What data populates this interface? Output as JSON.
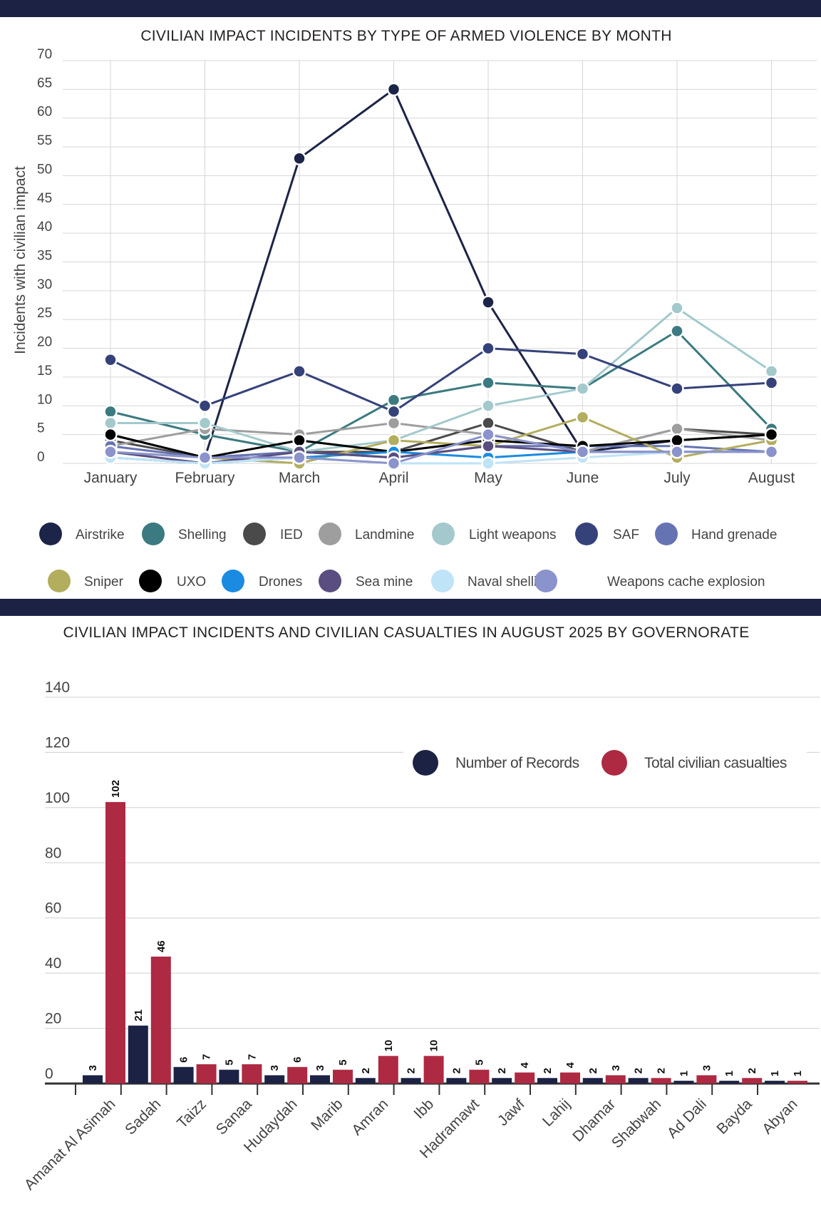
{
  "chart_data": [
    {
      "type": "line",
      "title": "CIVILIAN IMPACT INCIDENTS BY TYPE OF ARMED VIOLENCE BY MONTH",
      "ylabel": "Incidents with civilian impact",
      "xlabel": "",
      "categories": [
        "January",
        "February",
        "March",
        "April",
        "May",
        "June",
        "July",
        "August"
      ],
      "y_ticks": [
        "0",
        "5",
        "10",
        "15",
        "20",
        "25",
        "30",
        "35",
        "40",
        "45",
        "50",
        "55",
        "60",
        "65",
        "70"
      ],
      "ylim": [
        0,
        70
      ],
      "grid": true,
      "legend_position": "bottom",
      "series": [
        {
          "name": "Airstrike",
          "color": "#1c2447",
          "values": [
            5,
            1,
            53,
            65,
            28,
            2,
            4,
            5
          ]
        },
        {
          "name": "Shelling",
          "color": "#3b7a80",
          "values": [
            9,
            5,
            2,
            11,
            14,
            13,
            23,
            6
          ]
        },
        {
          "name": "IED",
          "color": "#4a4a4a",
          "values": [
            4,
            1,
            2,
            2,
            7,
            2,
            6,
            5
          ]
        },
        {
          "name": "Landmine",
          "color": "#9e9e9e",
          "values": [
            3,
            6,
            5,
            7,
            5,
            2,
            6,
            4
          ]
        },
        {
          "name": "Light weapons",
          "color": "#a3c9cc",
          "values": [
            7,
            7,
            2,
            4,
            10,
            13,
            27,
            16
          ]
        },
        {
          "name": "SAF",
          "color": "#35427a",
          "values": [
            18,
            10,
            16,
            9,
            20,
            19,
            13,
            14
          ]
        },
        {
          "name": "Hand grenade",
          "color": "#6673b3",
          "values": [
            3,
            1,
            2,
            1,
            3,
            3,
            3,
            2
          ]
        },
        {
          "name": "Sniper",
          "color": "#b3ad5e",
          "values": [
            2,
            1,
            0,
            4,
            3,
            8,
            1,
            4
          ]
        },
        {
          "name": "UXO",
          "color": "#000000",
          "values": [
            5,
            1,
            4,
            2,
            4,
            3,
            4,
            5
          ]
        },
        {
          "name": "Drones",
          "color": "#1a8be0",
          "values": [
            1,
            0,
            1,
            2,
            1,
            2,
            2,
            2
          ]
        },
        {
          "name": "Sea mine",
          "color": "#5a4e80",
          "values": [
            2,
            0,
            2,
            1,
            3,
            2,
            2,
            2
          ]
        },
        {
          "name": "Naval shelling",
          "color": "#bfe3f7",
          "values": [
            1,
            0,
            1,
            0,
            0,
            1,
            2,
            2
          ]
        },
        {
          "name": "Weapons cache explosion",
          "color": "#8a93cc",
          "values": [
            2,
            1,
            1,
            0,
            5,
            2,
            2,
            2
          ]
        }
      ]
    },
    {
      "type": "bar",
      "title": "CIVILIAN IMPACT INCIDENTS AND CIVILIAN CASUALTIES IN AUGUST 2025 BY GOVERNORATE",
      "xlabel": "",
      "ylabel": "",
      "categories": [
        "Amanat Al Asimah",
        "Sadah",
        "Taizz",
        "Sanaa",
        "Hudaydah",
        "Marib",
        "Amran",
        "Ibb",
        "Hadramawt",
        "Jawf",
        "Lahij",
        "Dhamar",
        "Shabwah",
        "Ad Dali",
        "Bayda",
        "Abyan"
      ],
      "y_ticks": [
        "0",
        "20",
        "40",
        "60",
        "80",
        "100",
        "120",
        "140"
      ],
      "ylim": [
        0,
        140
      ],
      "grid": true,
      "legend_position": "top-right",
      "series": [
        {
          "name": "Number of Records",
          "color": "#1c2244",
          "values": [
            3,
            21,
            6,
            5,
            3,
            3,
            2,
            2,
            2,
            2,
            2,
            2,
            2,
            1,
            1,
            1
          ]
        },
        {
          "name": "Total civilian casualties",
          "color": "#ad2a42",
          "values": [
            102,
            46,
            7,
            7,
            6,
            5,
            10,
            10,
            5,
            4,
            4,
            3,
            2,
            3,
            2,
            1
          ]
        }
      ]
    }
  ]
}
